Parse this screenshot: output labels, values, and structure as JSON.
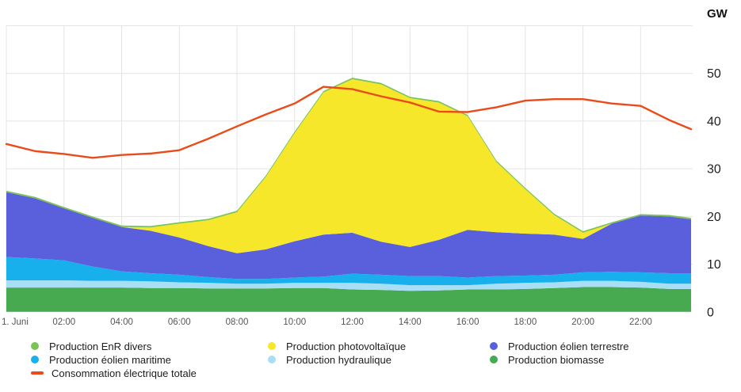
{
  "chart_data": {
    "type": "area",
    "stacked": true,
    "title": "",
    "unit_label": "GW",
    "ylabel": "GW",
    "xlabel": "",
    "ylim": [
      0,
      60
    ],
    "xlim_hours": [
      0,
      23.75
    ],
    "grid": true,
    "grid_color": "#E4E4E4",
    "y_ticks": [
      0,
      10,
      20,
      30,
      40,
      50
    ],
    "x_ticks": [
      {
        "hour": 0,
        "label": "1. Juni"
      },
      {
        "hour": 2,
        "label": "02:00"
      },
      {
        "hour": 4,
        "label": "04:00"
      },
      {
        "hour": 6,
        "label": "06:00"
      },
      {
        "hour": 8,
        "label": "08:00"
      },
      {
        "hour": 10,
        "label": "10:00"
      },
      {
        "hour": 12,
        "label": "12:00"
      },
      {
        "hour": 14,
        "label": "14:00"
      },
      {
        "hour": 16,
        "label": "16:00"
      },
      {
        "hour": 18,
        "label": "18:00"
      },
      {
        "hour": 20,
        "label": "20:00"
      },
      {
        "hour": 22,
        "label": "22:00"
      }
    ],
    "x_hours": [
      0,
      1,
      2,
      3,
      4,
      5,
      6,
      7,
      8,
      9,
      10,
      11,
      12,
      13,
      14,
      15,
      16,
      17,
      18,
      19,
      20,
      21,
      22,
      23,
      23.75
    ],
    "series": [
      {
        "id": "biomasse",
        "name": "Production biomasse",
        "color": "#47A950",
        "values": [
          5.1,
          5.1,
          5.1,
          5.1,
          5.1,
          5.0,
          5.0,
          4.9,
          4.9,
          4.9,
          5.0,
          5.0,
          4.7,
          4.6,
          4.4,
          4.5,
          4.7,
          4.7,
          4.8,
          5.0,
          5.2,
          5.2,
          5.1,
          4.8,
          4.8
        ]
      },
      {
        "id": "hydraulique",
        "name": "Production hydraulique",
        "color": "#A9DFF5",
        "values": [
          1.5,
          1.5,
          1.5,
          1.4,
          1.4,
          1.4,
          1.2,
          1.2,
          1.0,
          1.0,
          1.1,
          1.1,
          1.4,
          1.3,
          1.2,
          1.1,
          0.9,
          1.2,
          1.3,
          1.2,
          1.3,
          1.3,
          1.2,
          1.1,
          1.1
        ]
      },
      {
        "id": "eolien-maritime",
        "name": "Production éolien maritime",
        "color": "#17B0EC",
        "values": [
          4.9,
          4.6,
          4.2,
          3.0,
          2.0,
          1.7,
          1.6,
          1.2,
          1.0,
          1.0,
          1.1,
          1.3,
          1.9,
          1.9,
          1.9,
          1.9,
          1.6,
          1.6,
          1.5,
          1.6,
          1.8,
          1.9,
          2.0,
          2.2,
          2.2
        ]
      },
      {
        "id": "eolien-terrestre",
        "name": "Production éolien terrestre",
        "color": "#5A60DB",
        "values": [
          13.6,
          12.6,
          10.9,
          10.2,
          9.3,
          8.9,
          7.8,
          6.5,
          5.4,
          6.2,
          7.6,
          8.8,
          8.6,
          6.9,
          6.1,
          7.6,
          10.0,
          9.2,
          8.8,
          8.4,
          7.0,
          10.1,
          11.9,
          11.9,
          11.3
        ]
      },
      {
        "id": "photovoltaique",
        "name": "Production photovoltaïque",
        "color": "#F6E72B",
        "values": [
          0,
          0,
          0,
          0,
          0,
          0.7,
          2.9,
          5.4,
          8.6,
          15.2,
          22.7,
          29.8,
          32.2,
          33.0,
          31.2,
          28.8,
          23.8,
          14.7,
          9.3,
          4.1,
          1.3,
          0,
          0,
          0,
          0
        ]
      },
      {
        "id": "enr-divers",
        "name": "Production EnR divers",
        "color": "#7CC356",
        "values": [
          0.3,
          0.3,
          0.3,
          0.3,
          0.3,
          0.3,
          0.3,
          0.3,
          0.3,
          0.3,
          0.3,
          0.3,
          0.3,
          0.3,
          0.3,
          0.3,
          0.3,
          0.3,
          0.3,
          0.3,
          0.3,
          0.3,
          0.3,
          0.3,
          0.3
        ]
      }
    ],
    "line": {
      "id": "consommation",
      "name": "Consommation électrique totale",
      "color": "#EA4B1A",
      "values": [
        35.2,
        33.7,
        33.1,
        32.3,
        32.9,
        33.2,
        33.9,
        36.3,
        38.9,
        41.4,
        43.7,
        47.2,
        46.7,
        45.2,
        43.9,
        42.0,
        41.9,
        42.9,
        44.3,
        44.6,
        44.6,
        43.7,
        43.2,
        40.2,
        38.3
      ]
    },
    "legend": [
      {
        "id": "enr-divers",
        "col": 0,
        "row": 0,
        "marker": "dot"
      },
      {
        "id": "photovoltaique",
        "col": 1,
        "row": 0,
        "marker": "dot"
      },
      {
        "id": "eolien-terrestre",
        "col": 2,
        "row": 0,
        "marker": "dot"
      },
      {
        "id": "eolien-maritime",
        "col": 0,
        "row": 1,
        "marker": "dot"
      },
      {
        "id": "hydraulique",
        "col": 1,
        "row": 1,
        "marker": "dot"
      },
      {
        "id": "biomasse",
        "col": 2,
        "row": 1,
        "marker": "dot"
      },
      {
        "id": "consommation",
        "col": 0,
        "row": 2,
        "marker": "dash"
      }
    ]
  }
}
